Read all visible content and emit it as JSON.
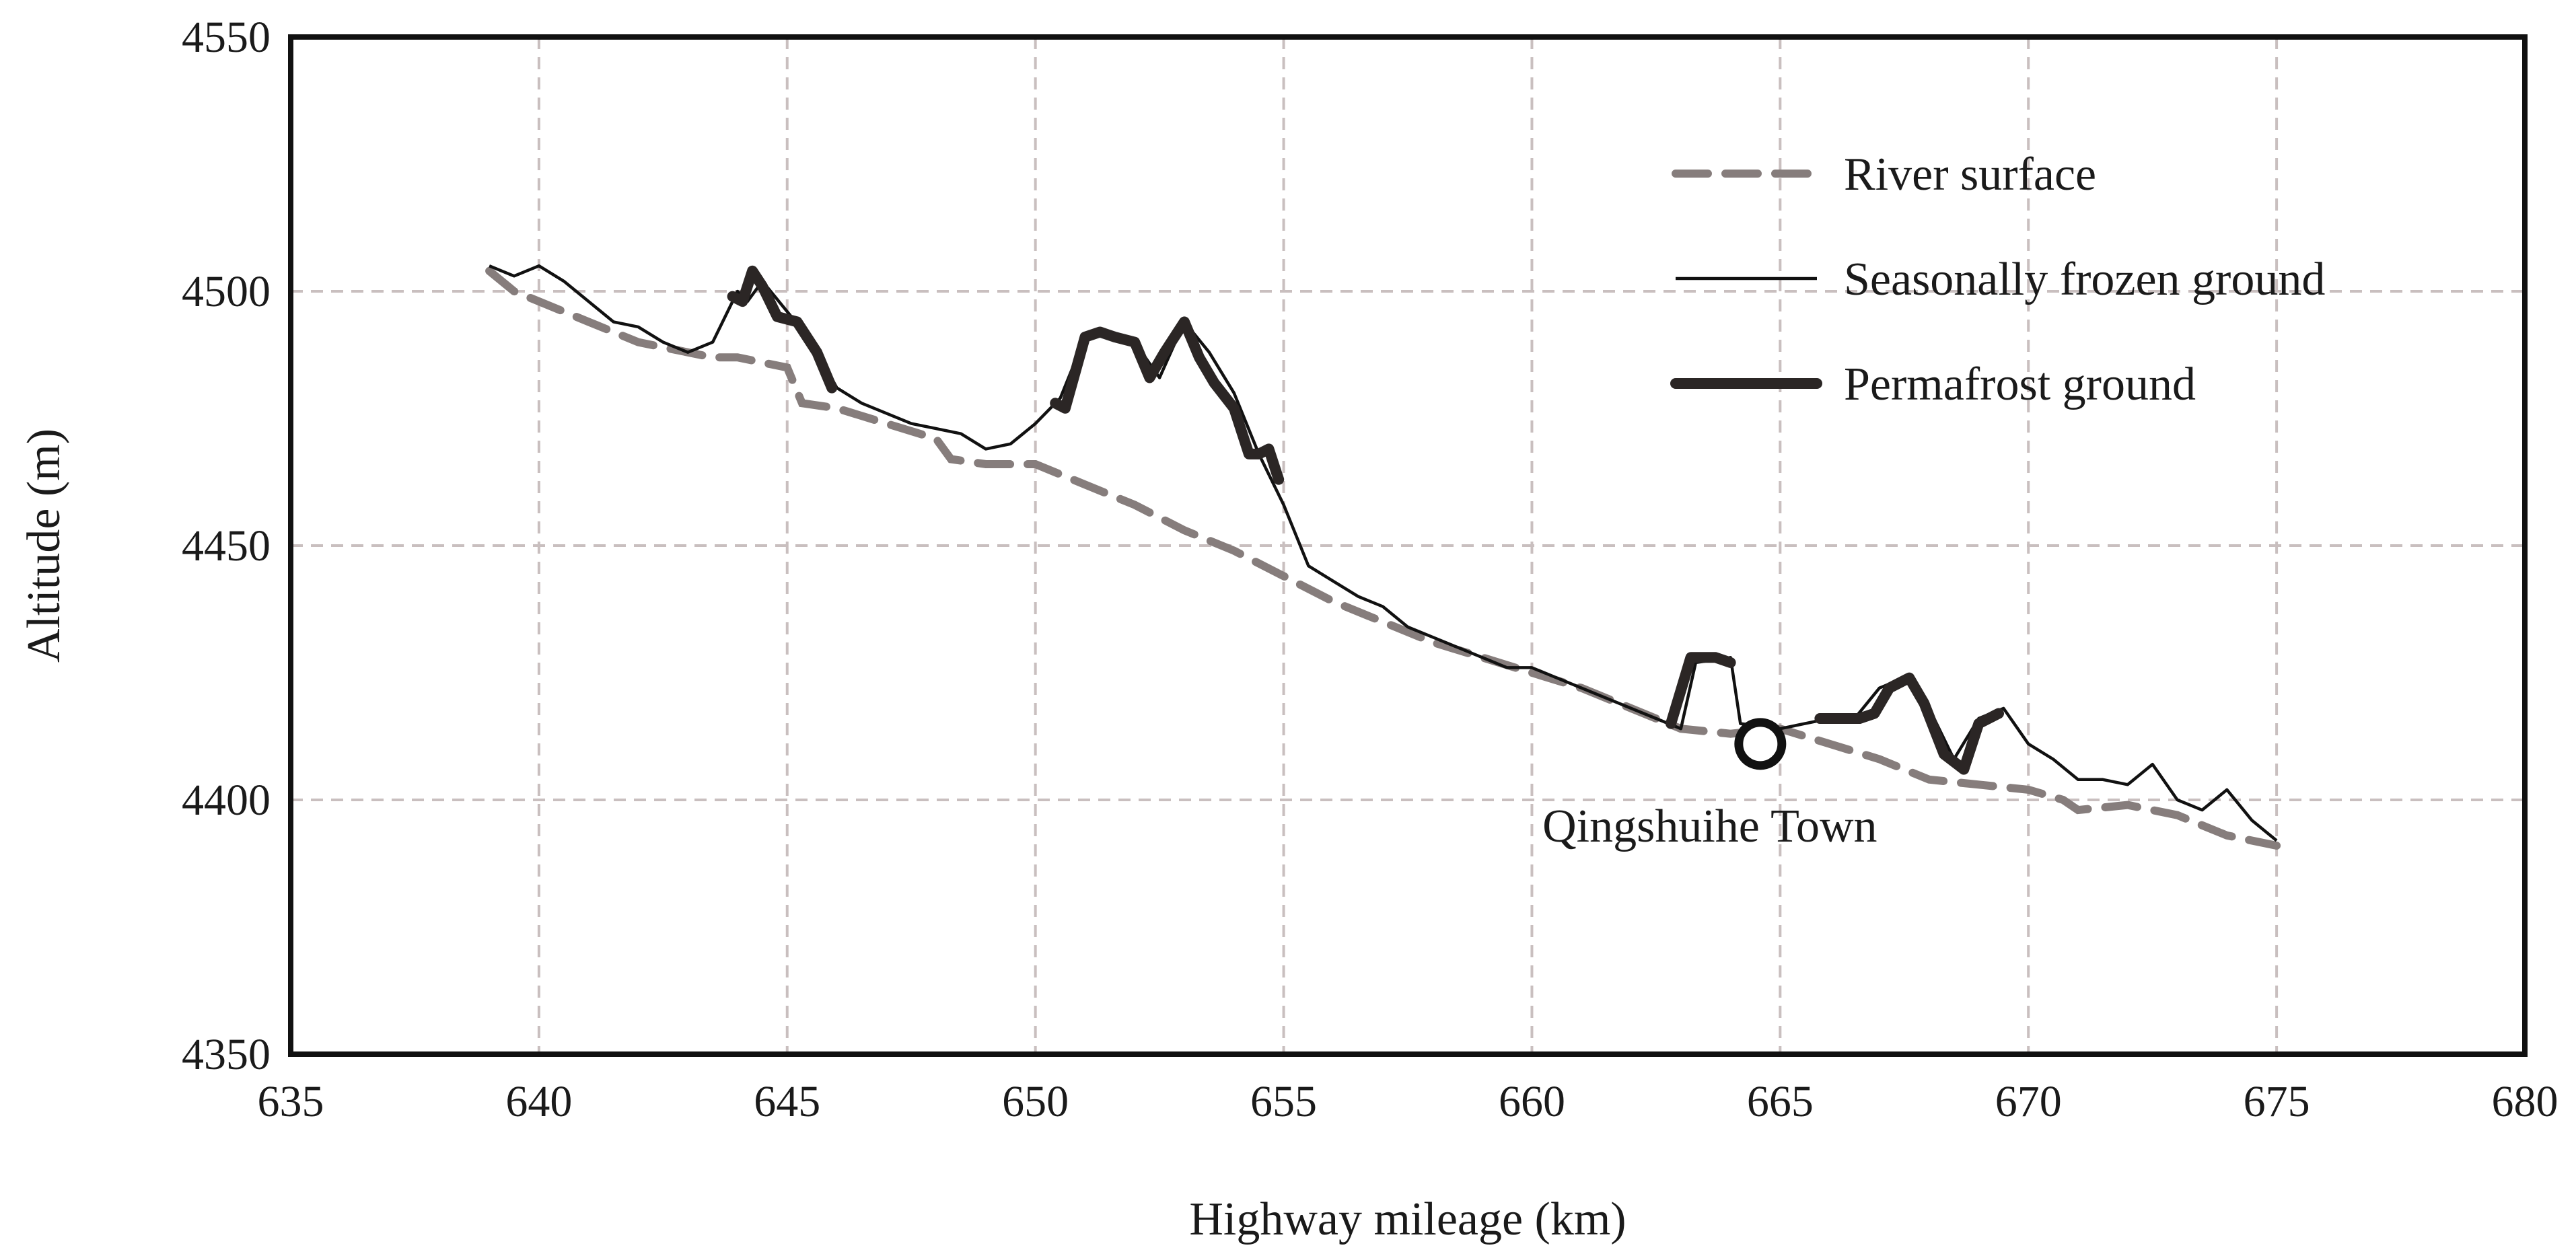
{
  "chart_data": {
    "type": "line",
    "title": "",
    "xlabel": "Highway mileage (km)",
    "ylabel": "Altitude (m)",
    "xlim": [
      635,
      680
    ],
    "ylim": [
      4350,
      4550
    ],
    "x_ticks": [
      "635",
      "640",
      "645",
      "650",
      "655",
      "660",
      "665",
      "670",
      "675",
      "680"
    ],
    "y_ticks": [
      "4350",
      "4400",
      "4450",
      "4500",
      "4550"
    ],
    "grid": true,
    "legend_position": "top-right",
    "legend": [
      "River surface",
      "Seasonally frozen ground",
      "Permafrost ground"
    ],
    "colors": {
      "river": "#867d7c",
      "seasonal": "#111111",
      "permafrost": "#2b2625",
      "grid": "#c9bfbf",
      "frame": "#111111"
    },
    "series": [
      {
        "name": "River surface",
        "style": "dashed",
        "points": [
          [
            639,
            4504
          ],
          [
            639.5,
            4500
          ],
          [
            640,
            4498
          ],
          [
            640.5,
            4496
          ],
          [
            641,
            4494
          ],
          [
            641.5,
            4492
          ],
          [
            642,
            4490
          ],
          [
            642.5,
            4489
          ],
          [
            643,
            4488
          ],
          [
            643.5,
            4487
          ],
          [
            644,
            4487
          ],
          [
            644.5,
            4486
          ],
          [
            645,
            4485
          ],
          [
            645.3,
            4478
          ],
          [
            646,
            4477
          ],
          [
            647,
            4474
          ],
          [
            648,
            4471
          ],
          [
            648.3,
            4467
          ],
          [
            649,
            4466
          ],
          [
            650,
            4466
          ],
          [
            651,
            4462
          ],
          [
            652,
            4458
          ],
          [
            653,
            4453
          ],
          [
            654,
            4449
          ],
          [
            655,
            4444
          ],
          [
            656,
            4439
          ],
          [
            657,
            4435
          ],
          [
            658,
            4431
          ],
          [
            659,
            4428
          ],
          [
            660,
            4425
          ],
          [
            661,
            4422
          ],
          [
            662,
            4418
          ],
          [
            663,
            4414
          ],
          [
            664,
            4413
          ],
          [
            665,
            4414
          ],
          [
            666,
            4411
          ],
          [
            667,
            4408
          ],
          [
            668,
            4404
          ],
          [
            669,
            4403
          ],
          [
            670,
            4402
          ],
          [
            670.7,
            4400
          ],
          [
            671,
            4398
          ],
          [
            672,
            4399
          ],
          [
            673,
            4397
          ],
          [
            674,
            4393
          ],
          [
            675,
            4391
          ]
        ]
      },
      {
        "name": "Seasonally frozen ground",
        "style": "thin",
        "points": [
          [
            639,
            4505
          ],
          [
            639.5,
            4503
          ],
          [
            640,
            4505
          ],
          [
            640.5,
            4502
          ],
          [
            641,
            4498
          ],
          [
            641.5,
            4494
          ],
          [
            642,
            4493
          ],
          [
            642.5,
            4490
          ],
          [
            643,
            4488
          ],
          [
            643.5,
            4490
          ],
          [
            644,
            4500
          ],
          [
            644.2,
            4498
          ],
          [
            644.5,
            4502
          ],
          [
            645,
            4496
          ],
          [
            645.5,
            4490
          ],
          [
            646,
            4481
          ],
          [
            646.5,
            4478
          ],
          [
            647,
            4476
          ],
          [
            647.5,
            4474
          ],
          [
            648,
            4473
          ],
          [
            648.5,
            4472
          ],
          [
            649,
            4469
          ],
          [
            649.5,
            4470
          ],
          [
            650,
            4474
          ],
          [
            650.5,
            4479
          ],
          [
            651,
            4491
          ],
          [
            651.5,
            4492
          ],
          [
            652,
            4490
          ],
          [
            652.5,
            4483
          ],
          [
            653,
            4494
          ],
          [
            653.5,
            4488
          ],
          [
            654,
            4480
          ],
          [
            654.5,
            4468
          ],
          [
            655,
            4458
          ],
          [
            655.5,
            4446
          ],
          [
            656,
            4443
          ],
          [
            656.5,
            4440
          ],
          [
            657,
            4438
          ],
          [
            657.5,
            4434
          ],
          [
            658,
            4432
          ],
          [
            658.5,
            4430
          ],
          [
            659,
            4428
          ],
          [
            659.5,
            4426
          ],
          [
            660,
            4426
          ],
          [
            660.5,
            4424
          ],
          [
            661,
            4422
          ],
          [
            661.5,
            4420
          ],
          [
            662,
            4418
          ],
          [
            662.5,
            4416
          ],
          [
            663,
            4414
          ],
          [
            663.3,
            4427
          ],
          [
            664,
            4428
          ],
          [
            664.2,
            4415
          ],
          [
            665,
            4414
          ],
          [
            665.5,
            4415
          ],
          [
            666,
            4416
          ],
          [
            666.5,
            4416
          ],
          [
            667,
            4422
          ],
          [
            667.5,
            4424
          ],
          [
            668,
            4418
          ],
          [
            668.5,
            4408
          ],
          [
            669,
            4416
          ],
          [
            669.5,
            4418
          ],
          [
            670,
            4411
          ],
          [
            670.5,
            4408
          ],
          [
            671,
            4404
          ],
          [
            671.5,
            4404
          ],
          [
            672,
            4403
          ],
          [
            672.5,
            4407
          ],
          [
            673,
            4400
          ],
          [
            673.5,
            4398
          ],
          [
            674,
            4402
          ],
          [
            674.5,
            4396
          ],
          [
            675,
            4392
          ]
        ]
      },
      {
        "name": "Permafrost ground",
        "style": "thick",
        "segments": [
          [
            [
              643.9,
              4499
            ],
            [
              644.1,
              4498
            ],
            [
              644.3,
              4504
            ],
            [
              644.5,
              4501
            ],
            [
              644.8,
              4495
            ],
            [
              645.2,
              4494
            ],
            [
              645.6,
              4488
            ],
            [
              645.9,
              4481
            ]
          ],
          [
            [
              650.4,
              4478
            ],
            [
              650.6,
              4477
            ],
            [
              651,
              4491
            ],
            [
              651.3,
              4492
            ],
            [
              651.6,
              4491
            ],
            [
              652,
              4490
            ],
            [
              652.3,
              4483
            ],
            [
              652.6,
              4488
            ],
            [
              653,
              4494
            ],
            [
              653.3,
              4487
            ],
            [
              653.6,
              4482
            ],
            [
              654,
              4477
            ],
            [
              654.3,
              4468
            ],
            [
              654.5,
              4468
            ],
            [
              654.7,
              4469
            ],
            [
              654.9,
              4463
            ]
          ],
          [
            [
              662.8,
              4415
            ],
            [
              663.2,
              4428
            ],
            [
              663.7,
              4428
            ],
            [
              664,
              4427
            ]
          ],
          [
            [
              665.8,
              4416
            ],
            [
              666.2,
              4416
            ],
            [
              666.6,
              4416
            ],
            [
              666.9,
              4417
            ],
            [
              667.2,
              4422
            ],
            [
              667.6,
              4424
            ],
            [
              667.9,
              4419
            ],
            [
              668.3,
              4409
            ],
            [
              668.7,
              4406
            ],
            [
              669,
              4415
            ],
            [
              669.4,
              4417
            ]
          ]
        ]
      }
    ],
    "annotations": [
      {
        "x": 664.6,
        "y": 4411,
        "marker": "circle",
        "text": "Qingshuihe Town"
      }
    ]
  }
}
